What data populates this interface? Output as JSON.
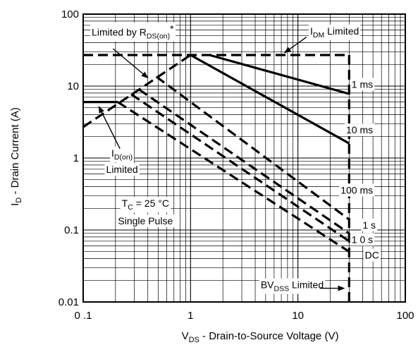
{
  "chart_data": {
    "type": "line",
    "x_scale": "log",
    "y_scale": "log",
    "xlim": [
      0.1,
      100
    ],
    "ylim": [
      0.01,
      100
    ],
    "grid": true,
    "xlabel": {
      "main": "V",
      "sub": "DS",
      "rest": " - Drain-to-Source Voltage (V)"
    },
    "ylabel": {
      "main": "I",
      "sub": "D",
      "rest": " - Drain Current (A)"
    },
    "x_ticks": [
      {
        "value": 0.1,
        "label": "0 .1"
      },
      {
        "value": 1,
        "label": "1"
      },
      {
        "value": 10,
        "label": "10"
      },
      {
        "value": 100,
        "label": "100"
      }
    ],
    "y_ticks": [
      {
        "value": 100,
        "label": "100"
      },
      {
        "value": 10,
        "label": "10"
      },
      {
        "value": 1,
        "label": "1"
      },
      {
        "value": 0.1,
        "label": "0.1"
      },
      {
        "value": 0.01,
        "label": "0.01"
      }
    ],
    "series": [
      {
        "id": "rds-limit",
        "style": "dashed",
        "points": [
          [
            0.1,
            2.7
          ],
          [
            1,
            27
          ]
        ]
      },
      {
        "id": "idm-limit",
        "style": "dashed",
        "points": [
          [
            0.1,
            27
          ],
          [
            30,
            27
          ]
        ]
      },
      {
        "id": "id-on-limit",
        "style": "solid",
        "points": [
          [
            0.1,
            6
          ],
          [
            0.21,
            6
          ]
        ]
      },
      {
        "id": "bvdss-limit",
        "style": "dashed",
        "points": [
          [
            30,
            27
          ],
          [
            30,
            0.01
          ]
        ]
      },
      {
        "id": "1ms",
        "style": "solid",
        "points": [
          [
            1.5,
            27
          ],
          [
            30,
            7.8
          ]
        ]
      },
      {
        "id": "10ms",
        "style": "solid",
        "points": [
          [
            1,
            27
          ],
          [
            30,
            1.6
          ]
        ]
      },
      {
        "id": "100ms",
        "style": "dashed",
        "points": [
          [
            0.48,
            13.5
          ],
          [
            30,
            0.14
          ]
        ]
      },
      {
        "id": "1s",
        "style": "dashed",
        "points": [
          [
            0.33,
            9
          ],
          [
            30,
            0.09
          ]
        ]
      },
      {
        "id": "10s",
        "style": "dashed",
        "points": [
          [
            0.28,
            7.7
          ],
          [
            30,
            0.07
          ]
        ]
      },
      {
        "id": "dc",
        "style": "dashed",
        "points": [
          [
            0.21,
            6
          ],
          [
            30,
            0.05
          ]
        ]
      }
    ],
    "annotations": [
      {
        "id": "limited-by-rds",
        "text": "Limited by R",
        "sub": "DS(on)",
        "suffix": "*",
        "x": 0.12,
        "y": 50
      },
      {
        "id": "idm-limited",
        "main": "I",
        "sub": "DM",
        "suffix": " Limited",
        "x": 13,
        "y": 52
      },
      {
        "id": "1ms-label",
        "text": "1 ms",
        "x": 50,
        "y": 9.5
      },
      {
        "id": "10ms-label",
        "text": "10 ms",
        "x": 50,
        "y": 2.2
      },
      {
        "id": "100ms-label",
        "text": "100 ms",
        "x": 50,
        "y": 0.32
      },
      {
        "id": "1s-label",
        "text": "1 s",
        "x": 40,
        "y": 0.105
      },
      {
        "id": "10s-label",
        "text": "1 0  s",
        "x": 50,
        "y": 0.066
      },
      {
        "id": "dc-label",
        "text": "DC",
        "x": 42,
        "y": 0.04
      },
      {
        "id": "id-on-line1",
        "main": "I",
        "sub": "D(on)",
        "x": 0.23,
        "y": 1.05
      },
      {
        "id": "id-on-line2",
        "text": "Limited",
        "x": 0.23,
        "y": 0.62
      },
      {
        "id": "tc-line1",
        "main": "T",
        "sub": "C",
        "suffix": " = 25  °C",
        "x": 0.38,
        "y": 0.21
      },
      {
        "id": "tc-line2",
        "text": "Single Pulse",
        "x": 0.38,
        "y": 0.12
      },
      {
        "id": "bvdss-label",
        "main": "BV",
        "sub": "DSS",
        "suffix": " Limited",
        "x": 4.5,
        "y": 0.0155
      }
    ]
  }
}
